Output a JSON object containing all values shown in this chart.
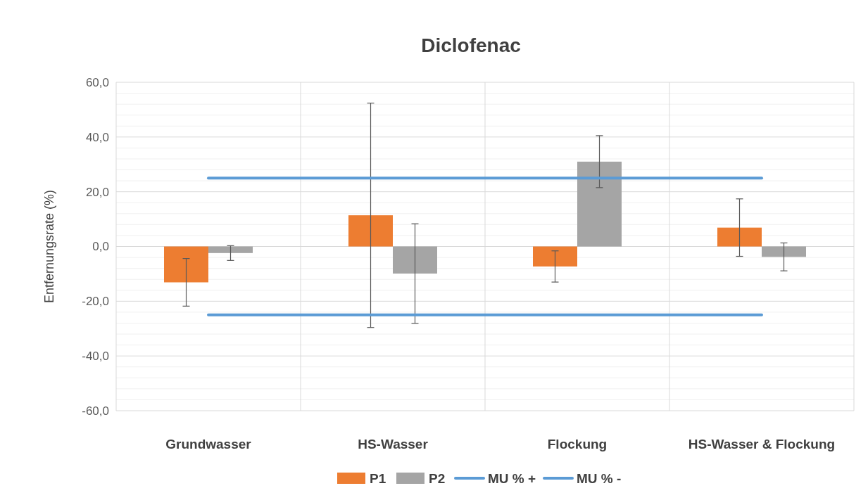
{
  "chart_data": {
    "type": "bar",
    "title": "Diclofenac",
    "ylabel": "Entfernungsrate (%)",
    "categories": [
      "Grundwasser",
      "HS-Wasser",
      "Flockung",
      "HS-Wasser & Flockung"
    ],
    "series": [
      {
        "name": "P1",
        "color": "#ed7d31",
        "values": [
          -13.1,
          11.4,
          -7.3,
          6.9
        ],
        "errors": [
          8.7,
          41.0,
          5.7,
          10.5
        ]
      },
      {
        "name": "P2",
        "color": "#a5a5a5",
        "values": [
          -2.4,
          -9.9,
          31.0,
          -3.8
        ],
        "errors": [
          2.7,
          18.2,
          9.5,
          5.1
        ]
      },
      {
        "name": "MU % +",
        "type": "line",
        "color": "#5b9bd5",
        "values": [
          25,
          25,
          25,
          25
        ]
      },
      {
        "name": "MU % -",
        "type": "line",
        "color": "#5b9bd5",
        "values": [
          -25,
          -25,
          -25,
          -25
        ]
      }
    ],
    "ylim": [
      -60,
      60
    ],
    "yticks": [
      {
        "value": -60,
        "label": "-60,0"
      },
      {
        "value": -56,
        "label": null
      },
      {
        "value": -52,
        "label": null
      },
      {
        "value": -48,
        "label": null
      },
      {
        "value": -44,
        "label": null
      },
      {
        "value": -40,
        "label": "-40,0"
      },
      {
        "value": -36,
        "label": null
      },
      {
        "value": -32,
        "label": null
      },
      {
        "value": -28,
        "label": null
      },
      {
        "value": -24,
        "label": null
      },
      {
        "value": -20,
        "label": "-20,0"
      },
      {
        "value": -16,
        "label": null
      },
      {
        "value": -12,
        "label": null
      },
      {
        "value": -8,
        "label": null
      },
      {
        "value": -4,
        "label": null
      },
      {
        "value": 0,
        "label": "0,0"
      },
      {
        "value": 4,
        "label": null
      },
      {
        "value": 8,
        "label": null
      },
      {
        "value": 12,
        "label": null
      },
      {
        "value": 16,
        "label": null
      },
      {
        "value": 20,
        "label": "20,0"
      },
      {
        "value": 24,
        "label": null
      },
      {
        "value": 28,
        "label": null
      },
      {
        "value": 32,
        "label": null
      },
      {
        "value": 36,
        "label": null
      },
      {
        "value": 40,
        "label": "40,0"
      },
      {
        "value": 44,
        "label": null
      },
      {
        "value": 48,
        "label": null
      },
      {
        "value": 52,
        "label": null
      },
      {
        "value": 56,
        "label": null
      },
      {
        "value": 60,
        "label": "60,0"
      }
    ],
    "grid": true,
    "legend": "bottom"
  }
}
